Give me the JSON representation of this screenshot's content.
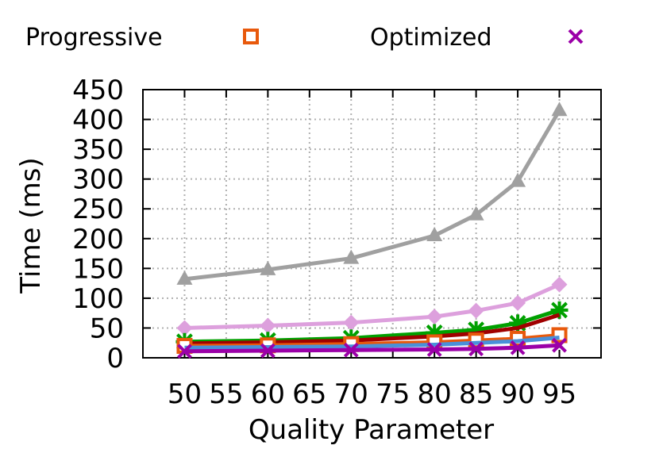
{
  "chart_data": {
    "type": "line",
    "title": "",
    "xlabel": "Quality Parameter",
    "ylabel": "Time (ms)",
    "xlim": [
      45,
      100
    ],
    "ylim": [
      0,
      450
    ],
    "x": [
      50,
      60,
      70,
      80,
      85,
      90,
      95
    ],
    "xticks": [
      50,
      55,
      60,
      65,
      70,
      75,
      80,
      85,
      90,
      95
    ],
    "yticks": [
      0,
      50,
      100,
      150,
      200,
      250,
      300,
      350,
      400,
      450
    ],
    "grid": true,
    "legend_position": "top",
    "legend": [
      {
        "label": "Progressive",
        "color": "#e8590c",
        "marker": "square"
      },
      {
        "label": "Optimized",
        "color": "#9b00a8",
        "marker": "x"
      }
    ],
    "series": [
      {
        "name": "",
        "color": "#a0a0a0",
        "marker": "triangle",
        "values": [
          132,
          148,
          167,
          205,
          240,
          296,
          415
        ]
      },
      {
        "name": "",
        "color": "#dda0dd",
        "marker": "diamond",
        "values": [
          50,
          54,
          59,
          69,
          79,
          92,
          123
        ]
      },
      {
        "name": "",
        "color": "#00a000",
        "marker": "star",
        "values": [
          27,
          29,
          33,
          42,
          47,
          58,
          80
        ]
      },
      {
        "name": "",
        "color": "#a00000",
        "marker": "none",
        "values": [
          24,
          26,
          29,
          36,
          41,
          50,
          72
        ]
      },
      {
        "name": "Progressive",
        "color": "#e8590c",
        "marker": "square",
        "values": [
          20,
          21,
          23,
          26,
          29,
          32,
          38
        ]
      },
      {
        "name": "",
        "color": "#4a90d9",
        "marker": "none",
        "values": [
          17,
          18,
          19,
          22,
          25,
          28,
          34
        ]
      },
      {
        "name": "Optimized",
        "color": "#9b00a8",
        "marker": "x",
        "values": [
          11,
          12,
          13,
          14,
          15,
          17,
          21
        ]
      }
    ]
  }
}
